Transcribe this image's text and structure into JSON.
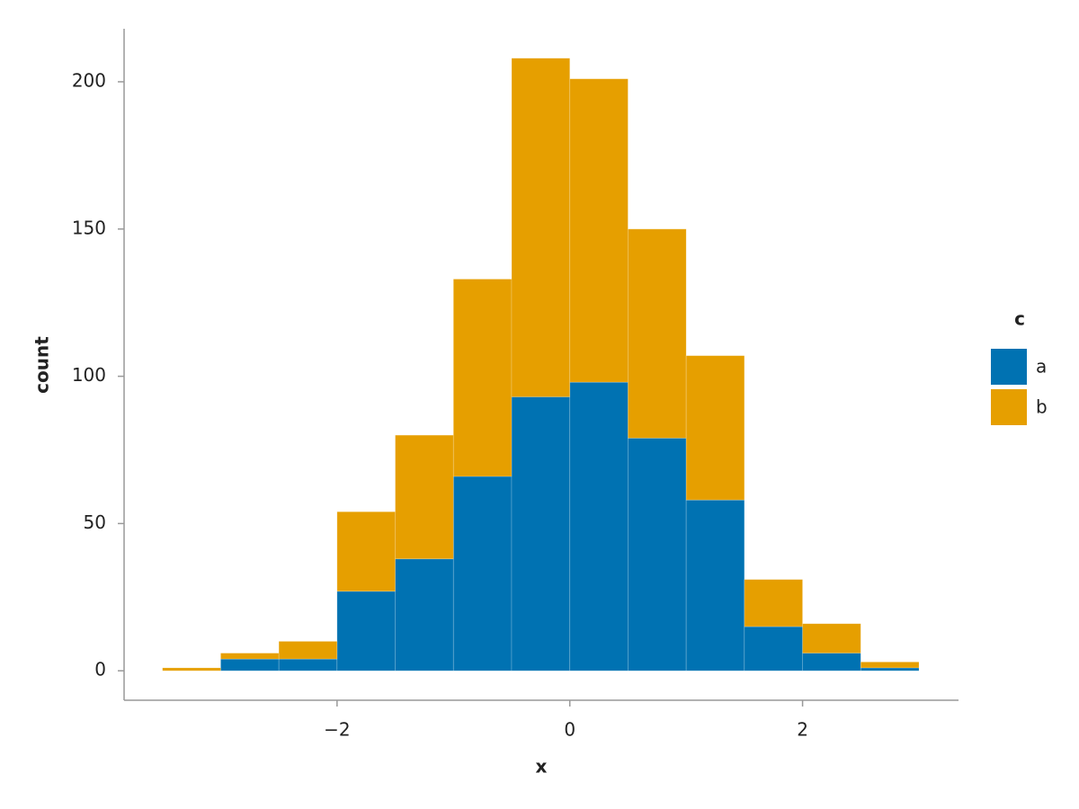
{
  "chart_data": {
    "type": "histogram",
    "xlabel": "x",
    "ylabel": "count",
    "bins": [
      -3.5,
      -3.0,
      -2.5,
      -2.0,
      -1.5,
      -1.0,
      -0.5,
      0.0,
      0.5,
      1.0,
      1.5,
      2.0,
      2.5,
      3.0
    ],
    "stacked": true,
    "series": [
      {
        "name": "a",
        "color": "#0072b2",
        "values": [
          0,
          4,
          4,
          27,
          38,
          66,
          93,
          98,
          79,
          58,
          15,
          6,
          1
        ]
      },
      {
        "name": "b",
        "color": "#e69f00",
        "values": [
          1,
          2,
          6,
          27,
          42,
          67,
          115,
          103,
          71,
          49,
          16,
          10,
          2
        ]
      }
    ],
    "legend_title": "c",
    "legend": "right",
    "xlim": [
      -3.83,
      3.34
    ],
    "ylim": [
      -10,
      218
    ],
    "xticks": [
      {
        "value": -2,
        "label": "−2"
      },
      0,
      2
    ],
    "yticks": [
      0,
      50,
      100,
      150,
      200
    ],
    "grid": false
  }
}
